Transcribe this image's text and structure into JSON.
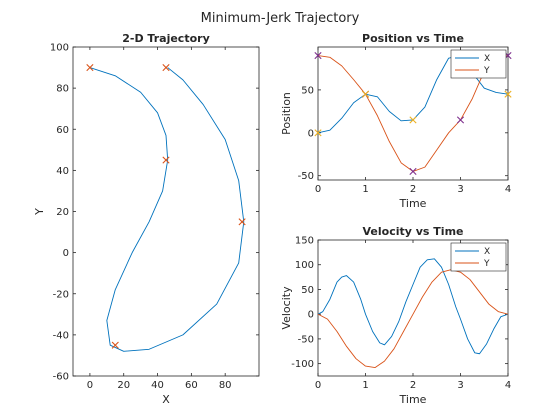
{
  "figure": {
    "title": "Minimum-Jerk Trajectory"
  },
  "colors": {
    "series1": "#0072BD",
    "series2": "#D95319",
    "marker_purple": "#7E2F8E",
    "marker_yellow": "#EDB120",
    "axis": "#262626"
  },
  "chart_data": [
    {
      "id": "traj",
      "type": "line",
      "title": "2-D Trajectory",
      "xlabel": "X",
      "ylabel": "Y",
      "xlim": [
        -10,
        100
      ],
      "ylim": [
        -60,
        100
      ],
      "xticks": [
        0,
        20,
        40,
        60,
        80
      ],
      "yticks": [
        -60,
        -40,
        -20,
        0,
        20,
        40,
        60,
        80,
        100
      ],
      "grid": false,
      "series": [
        {
          "color_key": "series1",
          "x": [
            0,
            15,
            30,
            40,
            45,
            46,
            43,
            35,
            25,
            15,
            10,
            12,
            20,
            35,
            55,
            75,
            88,
            91,
            88,
            80,
            67,
            55,
            46
          ],
          "y": [
            90,
            86,
            78,
            68,
            57,
            45,
            30,
            15,
            0,
            -18,
            -33,
            -45,
            -48,
            -47,
            -40,
            -25,
            -5,
            15,
            35,
            55,
            72,
            84,
            90
          ]
        }
      ],
      "markers": [
        {
          "x": 0,
          "y": 90,
          "color_key": "series2"
        },
        {
          "x": 45,
          "y": 45,
          "color_key": "series2"
        },
        {
          "x": 15,
          "y": -45,
          "color_key": "series2"
        },
        {
          "x": 90,
          "y": 15,
          "color_key": "series2"
        },
        {
          "x": 45,
          "y": 90,
          "color_key": "series2"
        }
      ]
    },
    {
      "id": "pos",
      "type": "line",
      "title": "Position vs Time",
      "xlabel": "Time",
      "ylabel": "Position",
      "xlim": [
        0,
        4
      ],
      "ylim": [
        -55,
        100
      ],
      "xticks": [
        0,
        1,
        2,
        3,
        4
      ],
      "yticks": [
        -50,
        0,
        50
      ],
      "grid": false,
      "legend": "top-right",
      "series": [
        {
          "name": "X",
          "color_key": "series1",
          "x": [
            0,
            0.25,
            0.5,
            0.75,
            1,
            1.25,
            1.5,
            1.75,
            2,
            2.25,
            2.5,
            2.75,
            3,
            3.25,
            3.5,
            3.75,
            4
          ],
          "y": [
            0,
            3,
            17,
            35,
            45,
            42,
            25,
            14,
            15,
            30,
            62,
            87,
            90,
            70,
            52,
            47,
            45
          ]
        },
        {
          "name": "Y",
          "color_key": "series2",
          "x": [
            0,
            0.25,
            0.5,
            0.75,
            1,
            1.25,
            1.5,
            1.75,
            2,
            2.25,
            2.5,
            2.75,
            3,
            3.25,
            3.5,
            3.75,
            4
          ],
          "y": [
            90,
            88,
            78,
            62,
            45,
            20,
            -10,
            -35,
            -45,
            -40,
            -20,
            0,
            15,
            40,
            72,
            87,
            90
          ]
        }
      ],
      "markers": [
        {
          "x": 0,
          "y": 90,
          "color_key": "marker_purple"
        },
        {
          "x": 1,
          "y": 45,
          "color_key": "marker_purple"
        },
        {
          "x": 2,
          "y": -45,
          "color_key": "marker_purple"
        },
        {
          "x": 3,
          "y": 15,
          "color_key": "marker_purple"
        },
        {
          "x": 4,
          "y": 90,
          "color_key": "marker_purple"
        },
        {
          "x": 0,
          "y": 0,
          "color_key": "marker_yellow"
        },
        {
          "x": 1,
          "y": 45,
          "color_key": "marker_yellow"
        },
        {
          "x": 2,
          "y": 15,
          "color_key": "marker_yellow"
        },
        {
          "x": 3,
          "y": 90,
          "color_key": "marker_yellow"
        },
        {
          "x": 4,
          "y": 45,
          "color_key": "marker_yellow"
        }
      ]
    },
    {
      "id": "vel",
      "type": "line",
      "title": "Velocity vs Time",
      "xlabel": "Time",
      "ylabel": "Velocity",
      "xlim": [
        0,
        4
      ],
      "ylim": [
        -125,
        150
      ],
      "xticks": [
        0,
        1,
        2,
        3,
        4
      ],
      "yticks": [
        -100,
        -50,
        0,
        50,
        100,
        150
      ],
      "grid": false,
      "legend": "top-right",
      "series": [
        {
          "name": "X",
          "color_key": "series1",
          "x": [
            0,
            0.1,
            0.25,
            0.4,
            0.5,
            0.6,
            0.75,
            0.9,
            1,
            1.15,
            1.3,
            1.4,
            1.55,
            1.7,
            1.85,
            2,
            2.15,
            2.3,
            2.45,
            2.6,
            2.75,
            2.9,
            3,
            3.15,
            3.3,
            3.4,
            3.55,
            3.7,
            3.85,
            4
          ],
          "y": [
            0,
            5,
            30,
            65,
            75,
            78,
            65,
            30,
            0,
            -35,
            -58,
            -62,
            -45,
            -15,
            25,
            60,
            95,
            110,
            112,
            95,
            60,
            15,
            -10,
            -50,
            -78,
            -80,
            -60,
            -30,
            -5,
            0
          ]
        },
        {
          "name": "Y",
          "color_key": "series2",
          "x": [
            0,
            0.2,
            0.4,
            0.6,
            0.8,
            1,
            1.2,
            1.4,
            1.6,
            1.8,
            2,
            2.2,
            2.4,
            2.6,
            2.8,
            3,
            3.2,
            3.4,
            3.6,
            3.8,
            4
          ],
          "y": [
            0,
            -10,
            -35,
            -65,
            -90,
            -105,
            -108,
            -95,
            -70,
            -35,
            0,
            35,
            65,
            85,
            90,
            85,
            70,
            45,
            20,
            5,
            0
          ]
        }
      ]
    }
  ]
}
